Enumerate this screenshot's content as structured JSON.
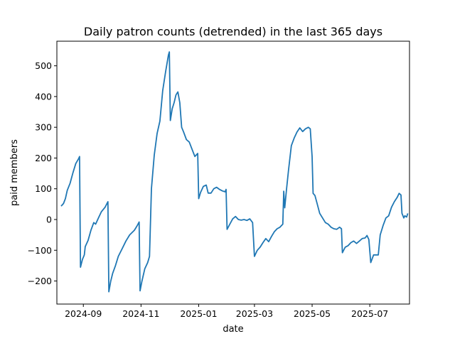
{
  "chart_data": {
    "type": "line",
    "title": "Daily patron counts (detrended) in the last 365 days",
    "xlabel": "date",
    "ylabel": "paid members",
    "x_range": [
      "2024-08-04",
      "2025-08-12"
    ],
    "ylim": [
      -275,
      580
    ],
    "x_ticks": [
      {
        "date": "2024-09-01",
        "label": "2024-09"
      },
      {
        "date": "2024-11-01",
        "label": "2024-11"
      },
      {
        "date": "2025-01-01",
        "label": "2025-01"
      },
      {
        "date": "2025-03-01",
        "label": "2025-03"
      },
      {
        "date": "2025-05-01",
        "label": "2025-05"
      },
      {
        "date": "2025-07-01",
        "label": "2025-07"
      }
    ],
    "y_ticks": [
      -200,
      -100,
      0,
      100,
      200,
      300,
      400,
      500
    ],
    "grid": false,
    "series": [
      {
        "name": "paid members",
        "color": "#1f77b4",
        "points": [
          [
            "2024-08-09",
            45
          ],
          [
            "2024-08-11",
            52
          ],
          [
            "2024-08-13",
            68
          ],
          [
            "2024-08-15",
            95
          ],
          [
            "2024-08-18",
            118
          ],
          [
            "2024-08-21",
            152
          ],
          [
            "2024-08-24",
            182
          ],
          [
            "2024-08-27",
            198
          ],
          [
            "2024-08-28",
            205
          ],
          [
            "2024-08-29",
            -155
          ],
          [
            "2024-08-31",
            -130
          ],
          [
            "2024-09-02",
            -115
          ],
          [
            "2024-09-03",
            -88
          ],
          [
            "2024-09-06",
            -68
          ],
          [
            "2024-09-09",
            -35
          ],
          [
            "2024-09-12",
            -10
          ],
          [
            "2024-09-14",
            -15
          ],
          [
            "2024-09-17",
            5
          ],
          [
            "2024-09-20",
            25
          ],
          [
            "2024-09-24",
            40
          ],
          [
            "2024-09-27",
            58
          ],
          [
            "2024-09-28",
            -235
          ],
          [
            "2024-09-30",
            -200
          ],
          [
            "2024-10-02",
            -175
          ],
          [
            "2024-10-05",
            -150
          ],
          [
            "2024-10-08",
            -120
          ],
          [
            "2024-10-12",
            -95
          ],
          [
            "2024-10-16",
            -70
          ],
          [
            "2024-10-20",
            -50
          ],
          [
            "2024-10-25",
            -35
          ],
          [
            "2024-10-28",
            -20
          ],
          [
            "2024-10-30",
            -8
          ],
          [
            "2024-10-31",
            -232
          ],
          [
            "2024-11-02",
            -200
          ],
          [
            "2024-11-05",
            -160
          ],
          [
            "2024-11-08",
            -140
          ],
          [
            "2024-11-10",
            -120
          ],
          [
            "2024-11-12",
            100
          ],
          [
            "2024-11-15",
            210
          ],
          [
            "2024-11-18",
            280
          ],
          [
            "2024-11-21",
            320
          ],
          [
            "2024-11-24",
            420
          ],
          [
            "2024-11-27",
            480
          ],
          [
            "2024-11-30",
            535
          ],
          [
            "2024-12-01",
            545
          ],
          [
            "2024-12-02",
            322
          ],
          [
            "2024-12-04",
            360
          ],
          [
            "2024-12-06",
            380
          ],
          [
            "2024-12-08",
            405
          ],
          [
            "2024-12-10",
            415
          ],
          [
            "2024-12-12",
            380
          ],
          [
            "2024-12-14",
            300
          ],
          [
            "2024-12-16",
            285
          ],
          [
            "2024-12-19",
            260
          ],
          [
            "2024-12-22",
            252
          ],
          [
            "2024-12-25",
            228
          ],
          [
            "2024-12-28",
            205
          ],
          [
            "2024-12-31",
            215
          ],
          [
            "2025-01-01",
            68
          ],
          [
            "2025-01-03",
            88
          ],
          [
            "2025-01-06",
            108
          ],
          [
            "2025-01-09",
            112
          ],
          [
            "2025-01-11",
            86
          ],
          [
            "2025-01-14",
            86
          ],
          [
            "2025-01-17",
            100
          ],
          [
            "2025-01-20",
            105
          ],
          [
            "2025-01-23",
            98
          ],
          [
            "2025-01-26",
            93
          ],
          [
            "2025-01-29",
            90
          ],
          [
            "2025-01-30",
            98
          ],
          [
            "2025-01-31",
            -32
          ],
          [
            "2025-02-03",
            -15
          ],
          [
            "2025-02-06",
            2
          ],
          [
            "2025-02-09",
            10
          ],
          [
            "2025-02-12",
            0
          ],
          [
            "2025-02-15",
            -2
          ],
          [
            "2025-02-18",
            0
          ],
          [
            "2025-02-21",
            -3
          ],
          [
            "2025-02-24",
            2
          ],
          [
            "2025-02-27",
            -10
          ],
          [
            "2025-03-01",
            -120
          ],
          [
            "2025-03-04",
            -100
          ],
          [
            "2025-03-07",
            -90
          ],
          [
            "2025-03-10",
            -75
          ],
          [
            "2025-03-13",
            -62
          ],
          [
            "2025-03-16",
            -72
          ],
          [
            "2025-03-19",
            -55
          ],
          [
            "2025-03-22",
            -40
          ],
          [
            "2025-03-25",
            -30
          ],
          [
            "2025-03-28",
            -25
          ],
          [
            "2025-03-31",
            -15
          ],
          [
            "2025-04-01",
            92
          ],
          [
            "2025-04-02",
            38
          ],
          [
            "2025-04-04",
            100
          ],
          [
            "2025-04-06",
            160
          ],
          [
            "2025-04-09",
            240
          ],
          [
            "2025-04-12",
            265
          ],
          [
            "2025-04-15",
            285
          ],
          [
            "2025-04-18",
            298
          ],
          [
            "2025-04-21",
            286
          ],
          [
            "2025-04-24",
            295
          ],
          [
            "2025-04-27",
            300
          ],
          [
            "2025-04-29",
            295
          ],
          [
            "2025-05-01",
            205
          ],
          [
            "2025-05-02",
            85
          ],
          [
            "2025-05-04",
            78
          ],
          [
            "2025-05-06",
            55
          ],
          [
            "2025-05-09",
            20
          ],
          [
            "2025-05-12",
            5
          ],
          [
            "2025-05-15",
            -10
          ],
          [
            "2025-05-18",
            -15
          ],
          [
            "2025-05-21",
            -25
          ],
          [
            "2025-05-24",
            -30
          ],
          [
            "2025-05-27",
            -32
          ],
          [
            "2025-05-30",
            -25
          ],
          [
            "2025-06-01",
            -30
          ],
          [
            "2025-06-02",
            -108
          ],
          [
            "2025-06-05",
            -90
          ],
          [
            "2025-06-08",
            -85
          ],
          [
            "2025-06-11",
            -75
          ],
          [
            "2025-06-14",
            -70
          ],
          [
            "2025-06-17",
            -78
          ],
          [
            "2025-06-20",
            -70
          ],
          [
            "2025-06-23",
            -62
          ],
          [
            "2025-06-26",
            -60
          ],
          [
            "2025-06-28",
            -52
          ],
          [
            "2025-06-30",
            -65
          ],
          [
            "2025-07-02",
            -140
          ],
          [
            "2025-07-05",
            -115
          ],
          [
            "2025-07-08",
            -115
          ],
          [
            "2025-07-10",
            -115
          ],
          [
            "2025-07-12",
            -50
          ],
          [
            "2025-07-15",
            -20
          ],
          [
            "2025-07-18",
            5
          ],
          [
            "2025-07-21",
            12
          ],
          [
            "2025-07-24",
            40
          ],
          [
            "2025-07-27",
            58
          ],
          [
            "2025-07-30",
            72
          ],
          [
            "2025-08-01",
            85
          ],
          [
            "2025-08-03",
            80
          ],
          [
            "2025-08-04",
            20
          ],
          [
            "2025-08-06",
            5
          ],
          [
            "2025-08-07",
            12
          ],
          [
            "2025-08-09",
            8
          ],
          [
            "2025-08-10",
            18
          ]
        ]
      }
    ]
  }
}
